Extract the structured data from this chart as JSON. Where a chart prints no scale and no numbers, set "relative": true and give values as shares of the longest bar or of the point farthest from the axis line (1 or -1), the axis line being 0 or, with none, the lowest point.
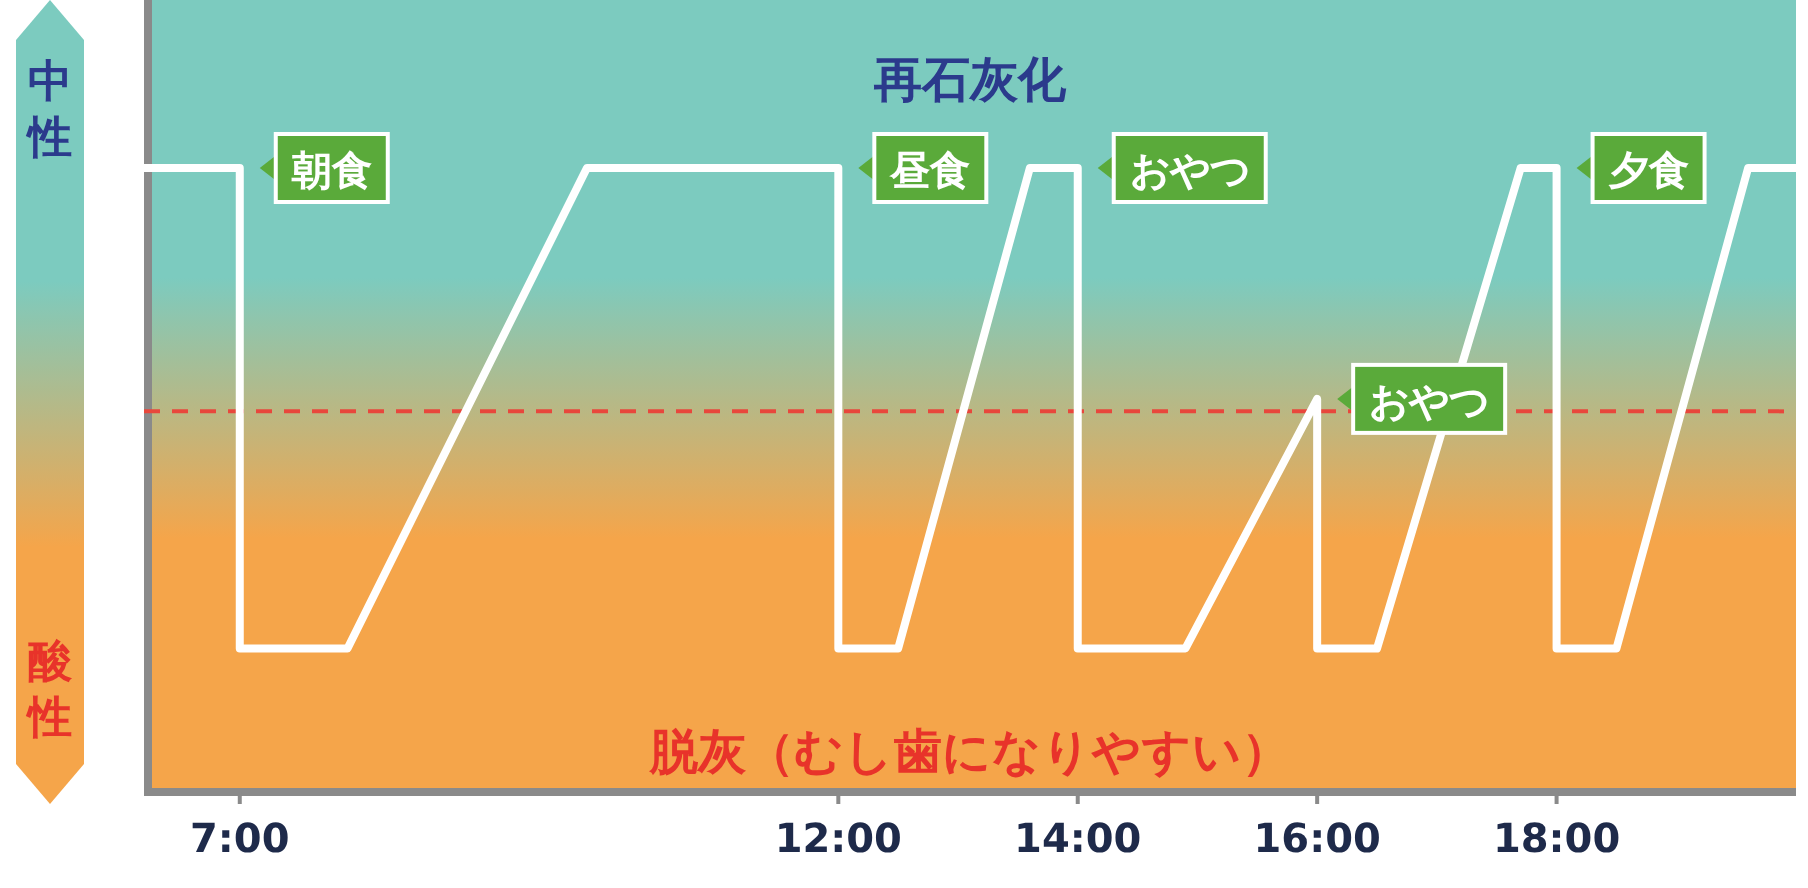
{
  "chart_data": {
    "type": "line",
    "relative": true,
    "marker": "none",
    "line_style": "solid",
    "x": [
      6.2,
      7,
      7,
      7.9,
      9.9,
      12,
      12,
      12.5,
      13.6,
      14,
      14,
      14.9,
      16,
      16,
      16.5,
      17.7,
      18,
      18,
      18.5,
      19.6,
      20
    ],
    "series": [
      {
        "color": "#ffffff",
        "values": [
          1,
          1,
          0.23,
          0.23,
          1,
          1,
          0.23,
          0.23,
          1,
          1,
          0.23,
          0.23,
          0.63,
          0.23,
          0.23,
          1,
          1,
          0.23,
          0.23,
          1,
          1
        ]
      }
    ],
    "xlim": [
      6.2,
      20
    ],
    "xticks": [
      {
        "value": 7,
        "label": "7:00"
      },
      {
        "value": 12,
        "label": "12:00"
      },
      {
        "value": 14,
        "label": "14:00"
      },
      {
        "value": 16,
        "label": "16:00"
      },
      {
        "value": 18,
        "label": "18:00"
      }
    ],
    "ref_lines": [
      {
        "axis": "y",
        "value": 0.61,
        "color": "#e8473c",
        "line_style": "dashed"
      }
    ],
    "annotations": [
      "再石灰化",
      "脱灰（むし歯になりやすい）",
      "中性",
      "酸性",
      {
        "text": "朝食",
        "x": 7,
        "y": 1
      },
      {
        "text": "昼食",
        "x": 12,
        "y": 1
      },
      {
        "text": "おやつ",
        "x": 14,
        "y": 1
      },
      {
        "text": "おやつ",
        "x": 16,
        "y": 0.63
      },
      {
        "text": "夕食",
        "x": 18,
        "y": 1
      }
    ]
  }
}
